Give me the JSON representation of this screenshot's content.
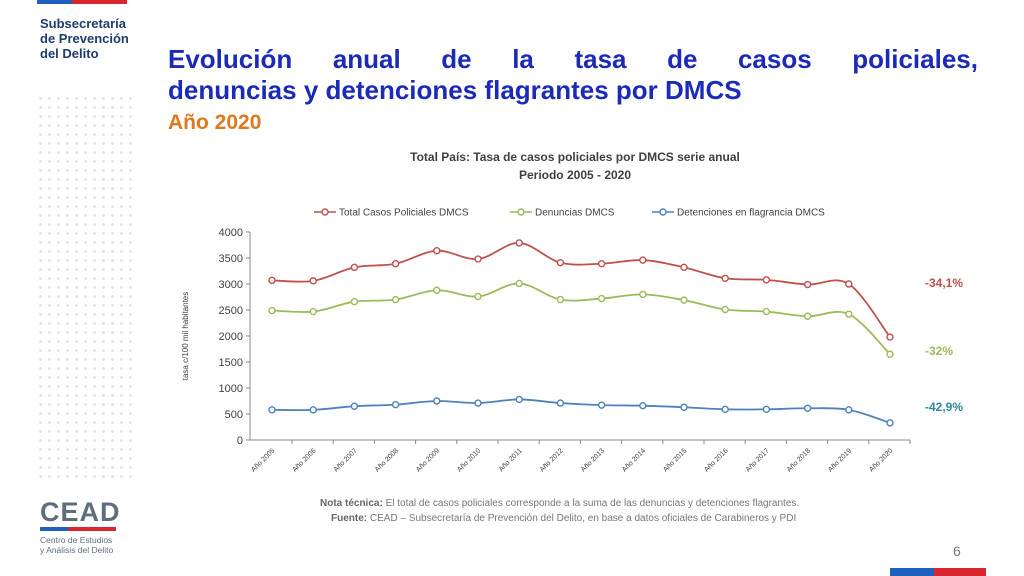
{
  "header": {
    "org_lines": [
      "Subsecretaría",
      "de Prevención",
      "del Delito"
    ],
    "title_line1_words": [
      "Evolución",
      "anual",
      "de",
      "la",
      "tasa",
      "de",
      "casos",
      "policiales,"
    ],
    "title_line2": "denuncias y detenciones flagrantes por DMCS",
    "subtitle": "Año 2020"
  },
  "logo": {
    "name": "CEAD",
    "sub1": "Centro de Estudios",
    "sub2": "y Análisis del Delito"
  },
  "page_number": "6",
  "colors": {
    "title": "#1b2bb8",
    "subtitle": "#e0781c",
    "flag_blue": "#1f5fbf",
    "flag_red": "#d8262f"
  },
  "footer": {
    "note_label": "Nota técnica:",
    "note_text": " El total de casos policiales corresponde a la suma de las denuncias y detenciones flagrantes.",
    "source_label": "Fuente:",
    "source_text": " CEAD – Subsecretaría de Prevención del Delito, en base a datos oficiales de Carabineros y PDI"
  },
  "chart_data": {
    "type": "line",
    "title": "Total País: Tasa de casos policiales por DMCS serie anual",
    "subtitle": "Periodo 2005 - 2020",
    "ylabel": "tasa c/100 mil habitantes",
    "xlabel": "",
    "ylim": [
      0,
      4000
    ],
    "yticks": [
      0,
      500,
      1000,
      1500,
      2000,
      2500,
      3000,
      3500,
      4000
    ],
    "grid": false,
    "legend": "top",
    "categories": [
      "Año 2005",
      "Año 2006",
      "Año 2007",
      "Año 2008",
      "Año 2009",
      "Año 2010",
      "Año 2011",
      "Año 2012",
      "Año 2013",
      "Año 2014",
      "Año 2015",
      "Año 2016",
      "Año 2017",
      "Año 2018",
      "Año 2019",
      "Año 2020"
    ],
    "series": [
      {
        "name": "Total Casos Policiales DMCS",
        "color": "#c0504d",
        "end_label": "-34,1%",
        "values": [
          3070,
          3060,
          3320,
          3390,
          3640,
          3480,
          3790,
          3410,
          3390,
          3460,
          3320,
          3110,
          3080,
          2990,
          3000,
          1980
        ]
      },
      {
        "name": "Denuncias DMCS",
        "color": "#9bbb59",
        "end_label": "-32%",
        "values": [
          2490,
          2470,
          2660,
          2700,
          2880,
          2760,
          3010,
          2700,
          2720,
          2800,
          2690,
          2510,
          2470,
          2380,
          2420,
          1650
        ]
      },
      {
        "name": "Detenciones en flagrancia DMCS",
        "color": "#4f81bd",
        "end_label": "-42,9%",
        "label_color": "#31859b",
        "values": [
          580,
          580,
          650,
          680,
          750,
          710,
          780,
          710,
          670,
          660,
          630,
          590,
          590,
          610,
          580,
          330
        ]
      }
    ]
  }
}
